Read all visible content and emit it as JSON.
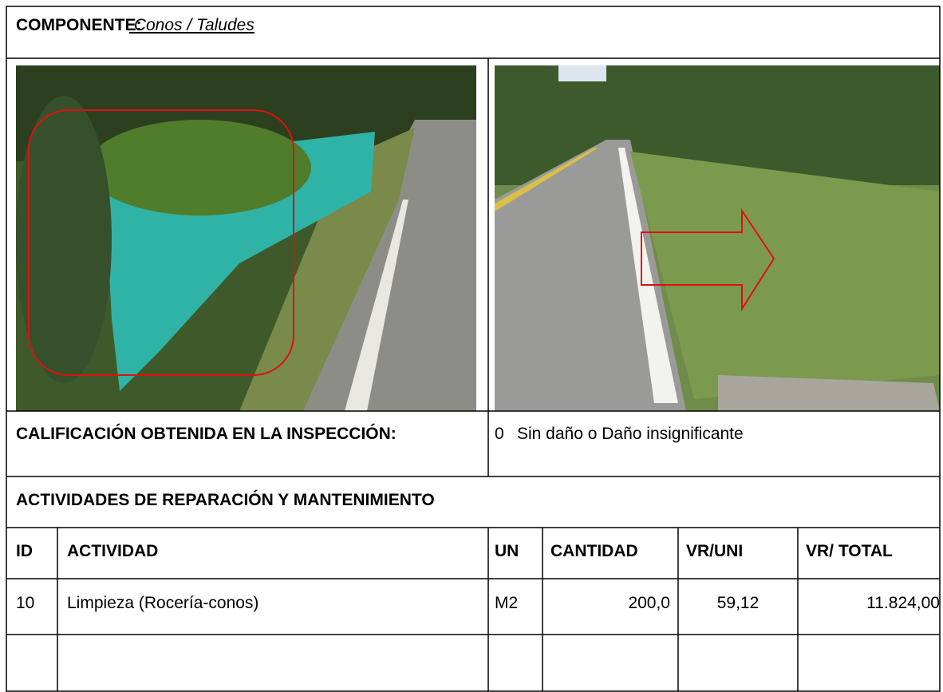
{
  "component": {
    "label": "COMPONENTE:",
    "value": " Conos / Taludes"
  },
  "inspection": {
    "label": "CALIFICACIÓN OBTENIDA EN LA INSPECCIÓN:",
    "score": "0",
    "description": "Sin daño o Daño insignificante"
  },
  "activities": {
    "title": "ACTIVIDADES DE REPARACIÓN Y MANTENIMIENTO"
  },
  "table": {
    "columns": [
      "ID",
      "ACTIVIDAD",
      "UN",
      "CANTIDAD",
      "VR/UNI",
      "VR/ TOTAL"
    ],
    "rows": [
      [
        "10",
        "Limpieza (Rocería-conos)",
        "M2",
        "200,0",
        "59,12",
        "11.824,00"
      ]
    ]
  }
}
